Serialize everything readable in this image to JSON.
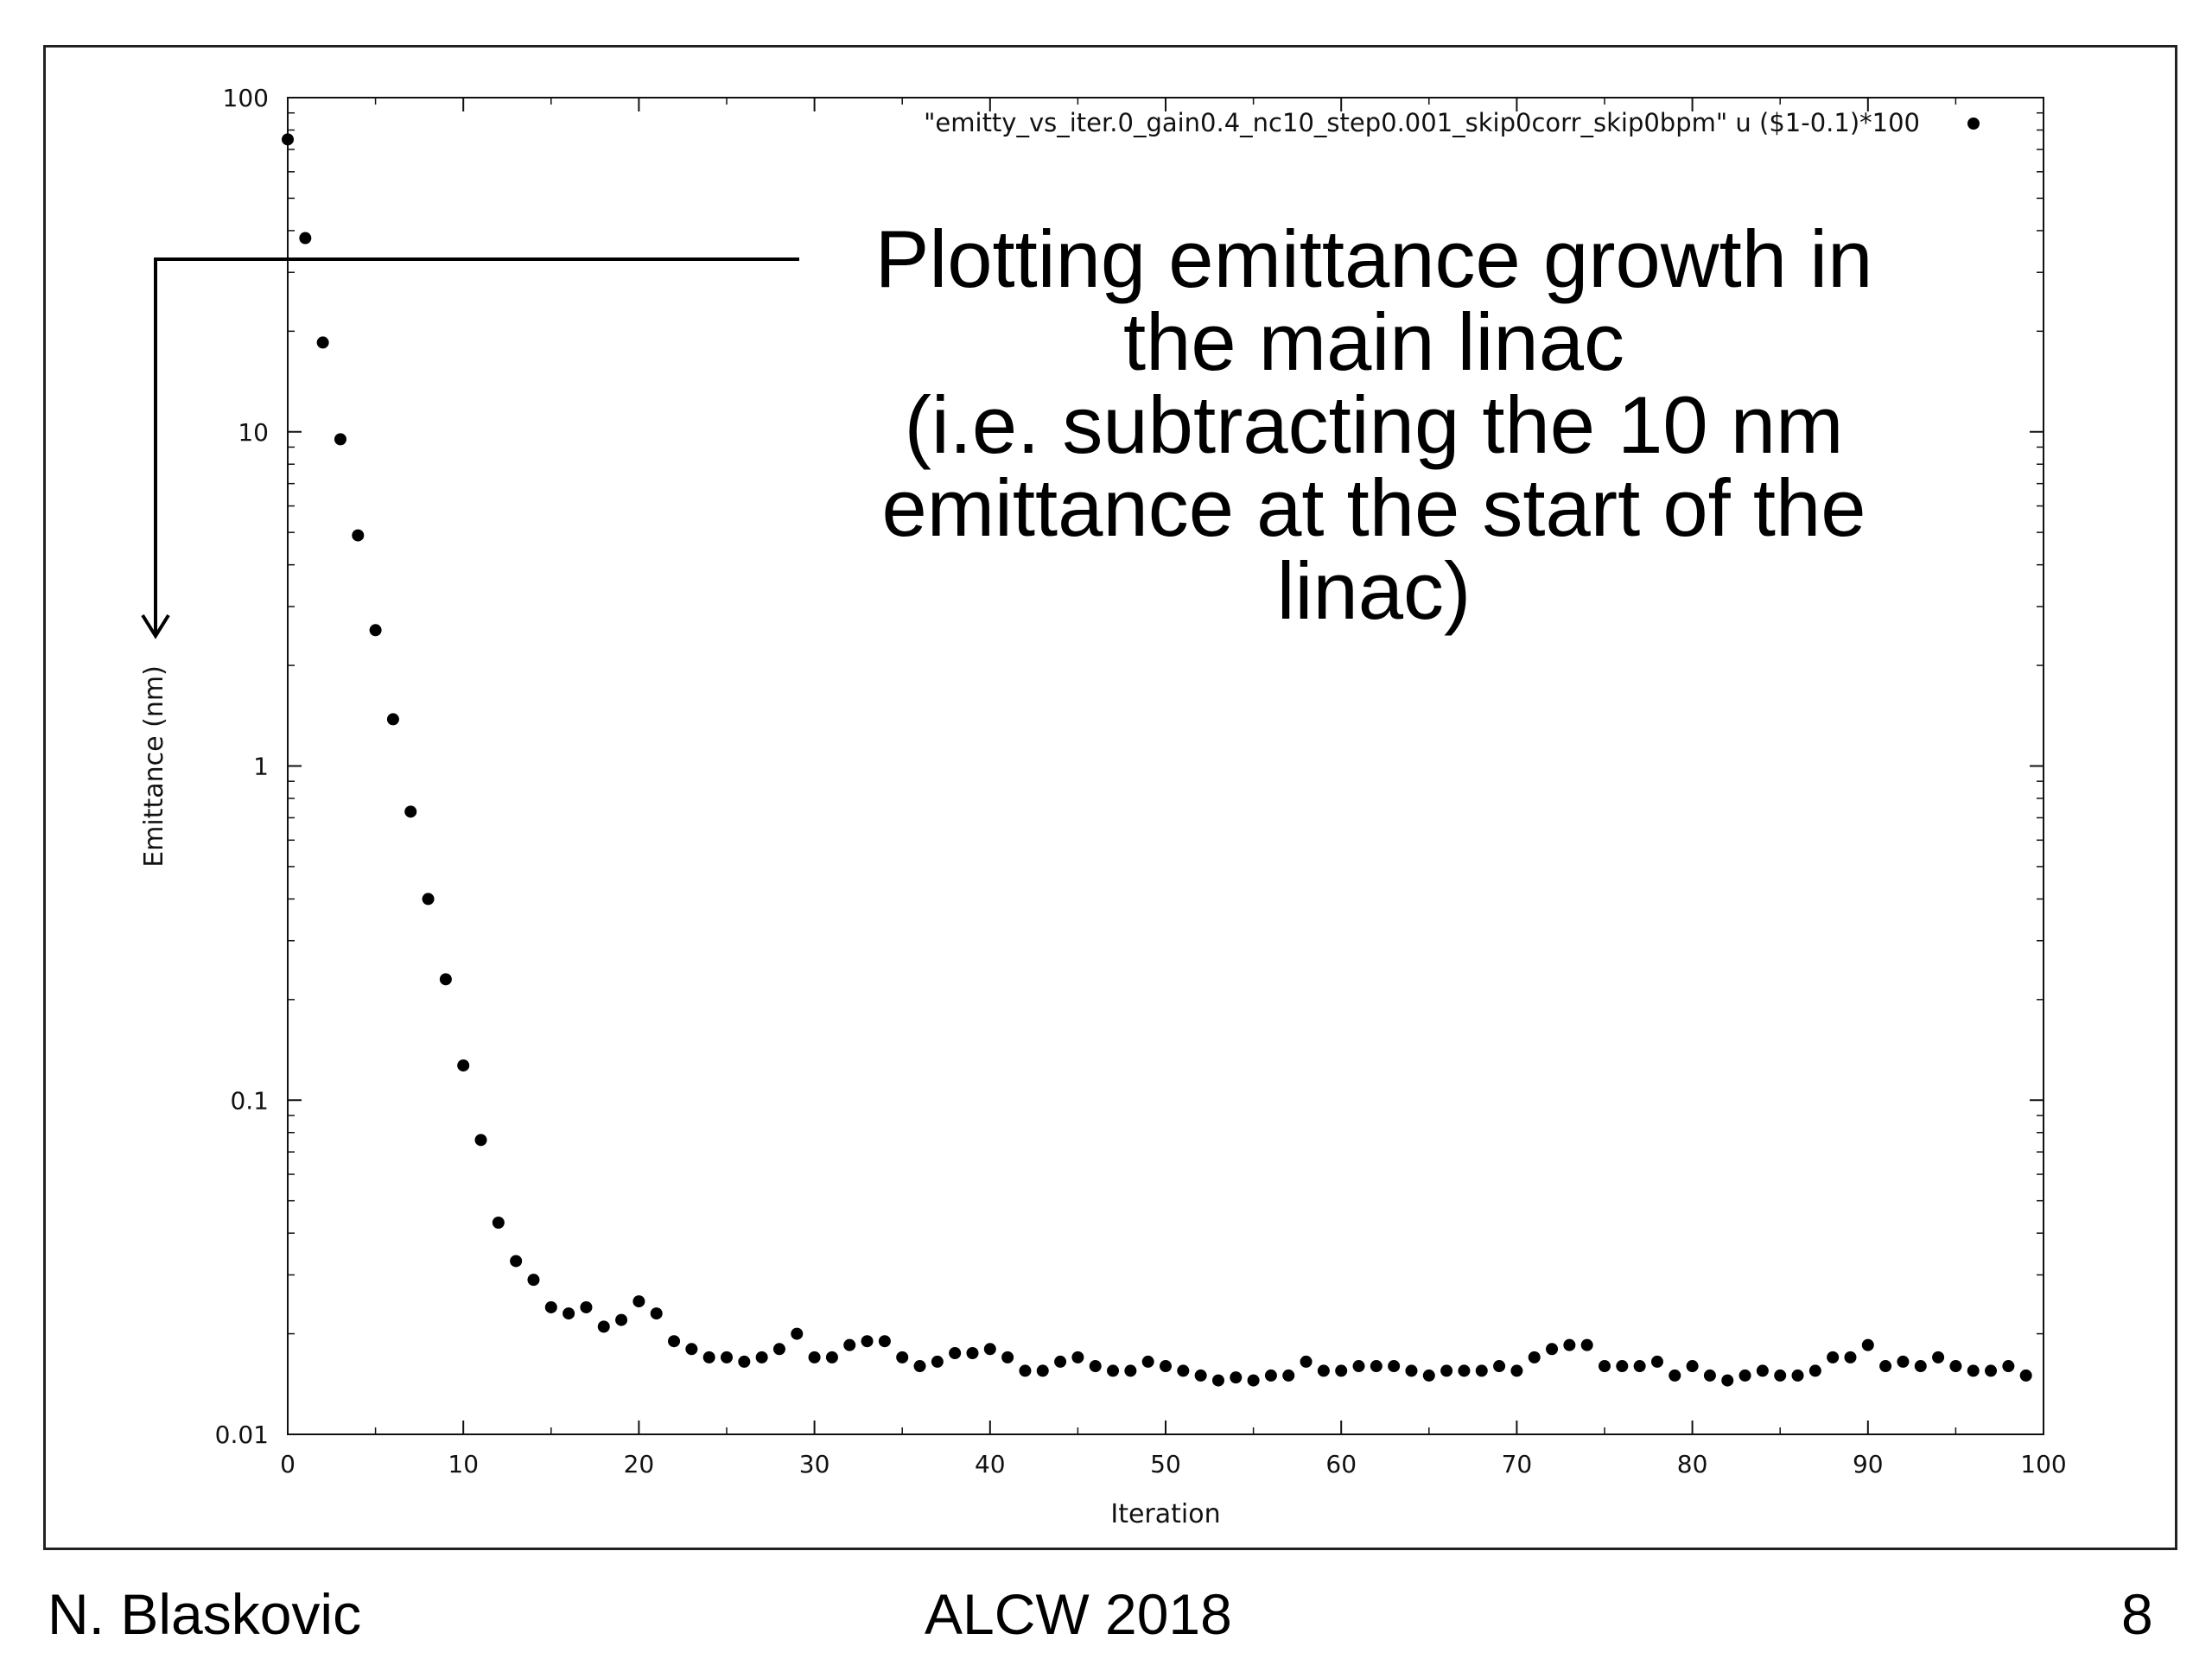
{
  "annotation": {
    "lines": [
      "Plotting emittance growth in",
      "the main linac",
      "(i.e. subtracting the 10 nm",
      "emittance at the start of the",
      "linac)"
    ]
  },
  "footer": {
    "author": "N. Blaskovic",
    "event": "ALCW 2018",
    "page": "8"
  },
  "chart_data": {
    "type": "scatter",
    "title": "",
    "xlabel": "Iteration",
    "ylabel": "Emittance (nm)",
    "xlim": [
      0,
      100
    ],
    "ylim": [
      0.01,
      100
    ],
    "yscale": "log",
    "grid": false,
    "legend_position": "top-right",
    "x_ticks": [
      "0",
      "10",
      "20",
      "30",
      "40",
      "50",
      "60",
      "70",
      "80",
      "90",
      "100"
    ],
    "y_ticks": [
      "0.01",
      "0.1",
      "1",
      "10",
      "100"
    ],
    "marker_color": "#000000",
    "series": [
      {
        "name": "\"emitty_vs_iter.0_gain0.4_nc10_step0.001_skip0corr_skip0bpm\" u ($1-0.1)*100",
        "x": [
          0,
          1,
          2,
          3,
          4,
          5,
          6,
          7,
          8,
          9,
          10,
          11,
          12,
          13,
          14,
          15,
          16,
          17,
          18,
          19,
          20,
          21,
          22,
          23,
          24,
          25,
          26,
          27,
          28,
          29,
          30,
          31,
          32,
          33,
          34,
          35,
          36,
          37,
          38,
          39,
          40,
          41,
          42,
          43,
          44,
          45,
          46,
          47,
          48,
          49,
          50,
          51,
          52,
          53,
          54,
          55,
          56,
          57,
          58,
          59,
          60,
          61,
          62,
          63,
          64,
          65,
          66,
          67,
          68,
          69,
          70,
          71,
          72,
          73,
          74,
          75,
          76,
          77,
          78,
          79,
          80,
          81,
          82,
          83,
          84,
          85,
          86,
          87,
          88,
          89,
          90,
          91,
          92,
          93,
          94,
          95,
          96,
          97,
          98,
          99
        ],
        "y": [
          75,
          38,
          18.5,
          9.5,
          4.9,
          2.55,
          1.38,
          0.73,
          0.4,
          0.23,
          0.127,
          0.076,
          0.043,
          0.033,
          0.029,
          0.024,
          0.023,
          0.024,
          0.021,
          0.022,
          0.025,
          0.023,
          0.019,
          0.018,
          0.017,
          0.017,
          0.0165,
          0.017,
          0.018,
          0.02,
          0.017,
          0.017,
          0.0185,
          0.019,
          0.019,
          0.017,
          0.016,
          0.0165,
          0.0175,
          0.0175,
          0.018,
          0.017,
          0.0155,
          0.0155,
          0.0165,
          0.017,
          0.016,
          0.0155,
          0.0155,
          0.0165,
          0.016,
          0.0155,
          0.015,
          0.0145,
          0.0148,
          0.0145,
          0.015,
          0.015,
          0.0165,
          0.0155,
          0.0155,
          0.016,
          0.016,
          0.016,
          0.0155,
          0.015,
          0.0155,
          0.0155,
          0.0155,
          0.016,
          0.0155,
          0.017,
          0.018,
          0.0185,
          0.0185,
          0.016,
          0.016,
          0.016,
          0.0165,
          0.015,
          0.016,
          0.015,
          0.0145,
          0.015,
          0.0155,
          0.015,
          0.015,
          0.0155,
          0.017,
          0.017,
          0.0185,
          0.016,
          0.0165,
          0.016,
          0.017,
          0.016,
          0.0155,
          0.0155,
          0.016,
          0.015
        ]
      }
    ]
  }
}
